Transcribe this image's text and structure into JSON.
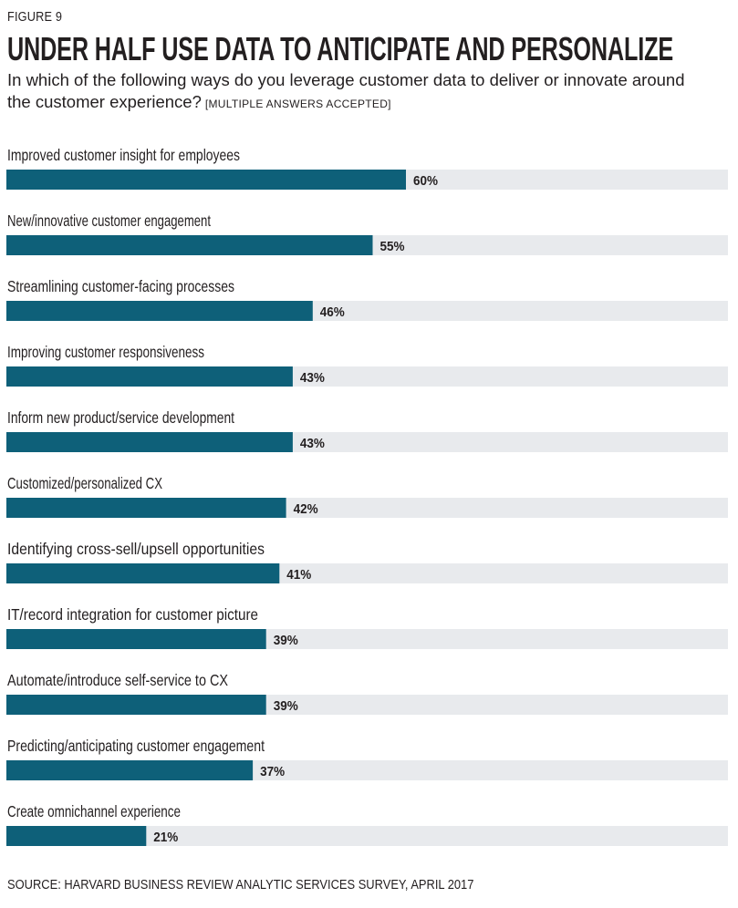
{
  "figure_label": "FIGURE 9",
  "chart_data": {
    "type": "bar",
    "orientation": "horizontal",
    "title": "UNDER HALF USE DATA TO ANTICIPATE AND PERSONALIZE",
    "subtitle": "In which of the following ways do you leverage customer data to deliver or innovate around the customer experience?",
    "subtitle_note": "[MULTIPLE ANSWERS ACCEPTED]",
    "categories": [
      "Improved customer insight for employees",
      "New/innovative customer engagement",
      "Streamlining customer-facing processes",
      "Improving customer responsiveness",
      "Inform new product/service development",
      "Customized/personalized CX",
      "Identifying cross-sell/upsell opportunities",
      "IT/record integration for customer picture",
      "Automate/introduce self-service to CX",
      "Predicting/anticipating customer engagement",
      "Create omnichannel experience"
    ],
    "values": [
      60,
      55,
      46,
      43,
      43,
      42,
      41,
      39,
      39,
      37,
      21
    ],
    "value_labels": [
      "60%",
      "55%",
      "46%",
      "43%",
      "43%",
      "42%",
      "41%",
      "39%",
      "39%",
      "37%",
      "21%"
    ],
    "xlim": [
      0,
      100
    ],
    "xlabel": "",
    "ylabel": "",
    "bar_color": "#0e6079",
    "track_color": "#e8eaed"
  },
  "source": "SOURCE: HARVARD BUSINESS REVIEW ANALYTIC SERVICES SURVEY, APRIL 2017"
}
